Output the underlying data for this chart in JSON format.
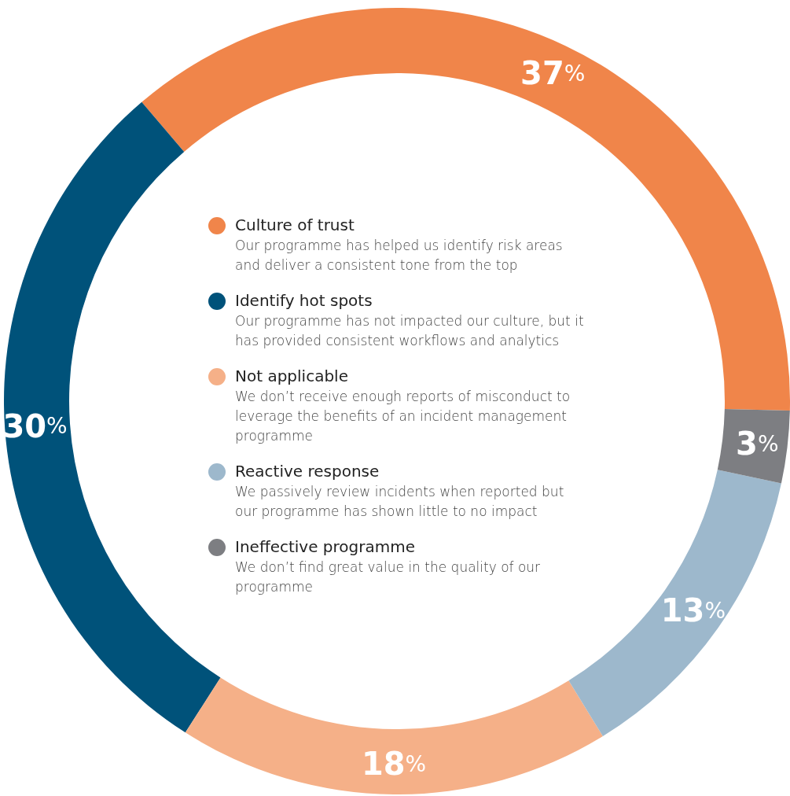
{
  "chart_data": {
    "type": "donut",
    "categories": [
      "Culture of trust",
      "Identify hot spots",
      "Not applicable",
      "Reactive response",
      "Ineffective programme"
    ],
    "values": [
      37,
      30,
      18,
      13,
      3
    ],
    "colors": [
      "#f0854a",
      "#00527a",
      "#f5b088",
      "#9db8cc",
      "#7d7e82"
    ],
    "value_labels": [
      "37%",
      "30%",
      "18%",
      "13%",
      "3%"
    ],
    "legend": "center",
    "annotations": [
      "Our programme has helped us identify risk areas and deliver a consistent tone from the top",
      "Our programme has not impacted our culture, but it has provided consistent workflows and analytics",
      "We don’t receive enough reports of misconduct to leverage the benefits of an incident management programme",
      "We passively review incidents when reported but our programme has shown little to no impact",
      "We don’t find great value in the quality of our programme"
    ]
  }
}
